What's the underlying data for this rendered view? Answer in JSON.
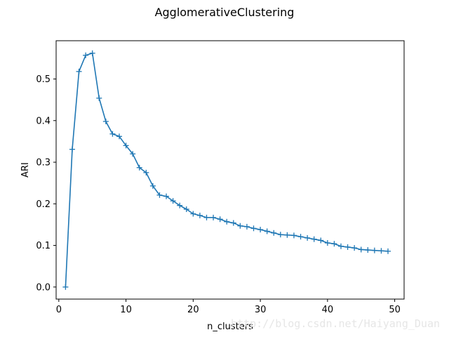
{
  "chart_data": {
    "type": "line",
    "title": "AgglomerativeClustering",
    "xlabel": "n_clusters",
    "ylabel": "ARI",
    "xlim": [
      -0.4,
      51.4
    ],
    "ylim": [
      -0.029,
      0.592
    ],
    "grid": false,
    "legend": "none",
    "marker": "+",
    "line_color": "#1f77b4",
    "x_ticks": [
      0,
      10,
      20,
      30,
      40,
      50
    ],
    "y_ticks": [
      0.0,
      0.1,
      0.2,
      0.3,
      0.4,
      0.5
    ],
    "x_tick_labels": [
      "0",
      "10",
      "20",
      "30",
      "40",
      "50"
    ],
    "y_tick_labels": [
      "0.0",
      "0.1",
      "0.2",
      "0.3",
      "0.4",
      "0.5"
    ],
    "x": [
      1,
      2,
      3,
      4,
      5,
      6,
      7,
      8,
      9,
      10,
      11,
      12,
      13,
      14,
      15,
      16,
      17,
      18,
      19,
      20,
      21,
      22,
      23,
      24,
      25,
      26,
      27,
      28,
      29,
      30,
      31,
      32,
      33,
      34,
      35,
      36,
      37,
      38,
      39,
      40,
      41,
      42,
      43,
      44,
      45,
      46,
      47,
      48,
      49
    ],
    "values": [
      0.0,
      0.331,
      0.518,
      0.557,
      0.562,
      0.454,
      0.398,
      0.368,
      0.362,
      0.34,
      0.32,
      0.287,
      0.275,
      0.243,
      0.221,
      0.218,
      0.207,
      0.196,
      0.187,
      0.176,
      0.172,
      0.167,
      0.167,
      0.163,
      0.157,
      0.154,
      0.147,
      0.145,
      0.141,
      0.138,
      0.134,
      0.13,
      0.126,
      0.125,
      0.124,
      0.121,
      0.118,
      0.115,
      0.112,
      0.106,
      0.104,
      0.098,
      0.096,
      0.094,
      0.09,
      0.089,
      0.088,
      0.087,
      0.086
    ]
  },
  "watermark": "http://blog.csdn.net/Haiyang_Duan"
}
